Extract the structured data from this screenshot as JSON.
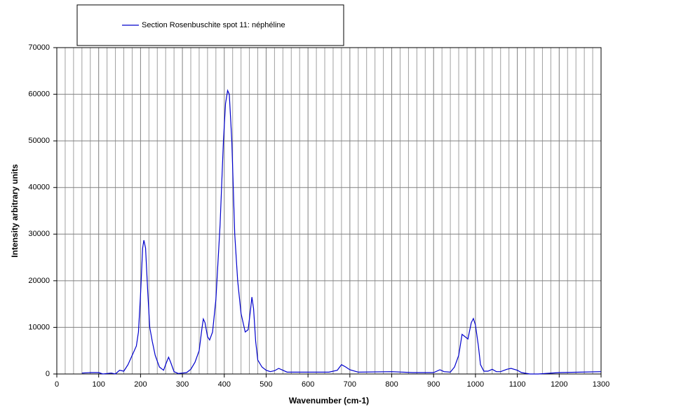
{
  "chart_data": {
    "type": "line",
    "xlabel": "Wavenumber (cm-1)",
    "ylabel": "Intensity  arbitrary units",
    "xlim": [
      0,
      1300
    ],
    "ylim": [
      0,
      70000
    ],
    "xticks": [
      0,
      100,
      200,
      300,
      400,
      500,
      600,
      700,
      800,
      900,
      1000,
      1100,
      1200,
      1300
    ],
    "xminorticks": [
      20,
      40,
      60,
      80,
      120,
      140,
      160,
      180,
      220,
      240,
      260,
      280,
      320,
      340,
      360,
      380,
      420,
      440,
      460,
      480,
      520,
      540,
      560,
      580,
      620,
      640,
      660,
      680,
      720,
      740,
      760,
      780,
      820,
      840,
      860,
      880,
      920,
      940,
      960,
      980,
      1020,
      1040,
      1060,
      1080,
      1120,
      1140,
      1160,
      1180,
      1220,
      1240,
      1260,
      1280
    ],
    "yticks": [
      0,
      10000,
      20000,
      30000,
      40000,
      50000,
      60000,
      70000
    ],
    "grid": true,
    "legend": "top",
    "x": [
      60,
      80,
      100,
      110,
      130,
      140,
      150,
      160,
      170,
      180,
      190,
      195,
      200,
      205,
      208,
      212,
      217,
      222,
      228,
      235,
      245,
      255,
      262,
      267,
      272,
      280,
      290,
      300,
      310,
      320,
      330,
      340,
      347,
      350,
      354,
      360,
      365,
      372,
      380,
      390,
      398,
      403,
      408,
      412,
      418,
      425,
      432,
      440,
      450,
      457,
      463,
      466,
      470,
      475,
      480,
      490,
      500,
      510,
      520,
      530,
      540,
      550,
      600,
      650,
      670,
      680,
      690,
      700,
      720,
      800,
      850,
      900,
      915,
      925,
      940,
      950,
      960,
      968,
      975,
      982,
      990,
      995,
      1000,
      1007,
      1012,
      1020,
      1030,
      1040,
      1050,
      1060,
      1075,
      1085,
      1100,
      1110,
      1130,
      1150,
      1200,
      1250,
      1300
    ],
    "series": [
      {
        "name": "Section Rosenbuschite spot 11: néphéline",
        "color": "#0000cc",
        "values": [
          200,
          300,
          300,
          0,
          200,
          0,
          800,
          600,
          2000,
          4000,
          6000,
          9000,
          17000,
          27000,
          28700,
          27000,
          18000,
          10000,
          7000,
          4000,
          1500,
          800,
          2500,
          3600,
          2500,
          500,
          100,
          200,
          300,
          1000,
          2500,
          5000,
          10000,
          11800,
          11000,
          8000,
          7300,
          9000,
          16000,
          32000,
          50000,
          58000,
          60800,
          60000,
          50000,
          30000,
          20000,
          13000,
          9000,
          9500,
          14000,
          16500,
          14000,
          7000,
          3000,
          1500,
          800,
          500,
          700,
          1200,
          800,
          400,
          400,
          400,
          800,
          2000,
          1500,
          900,
          400,
          500,
          300,
          300,
          900,
          500,
          400,
          1500,
          4000,
          8500,
          8000,
          7500,
          11000,
          11900,
          10500,
          6000,
          2000,
          600,
          600,
          1000,
          500,
          500,
          1000,
          1200,
          800,
          300,
          0,
          0,
          300,
          400,
          500
        ]
      }
    ]
  }
}
